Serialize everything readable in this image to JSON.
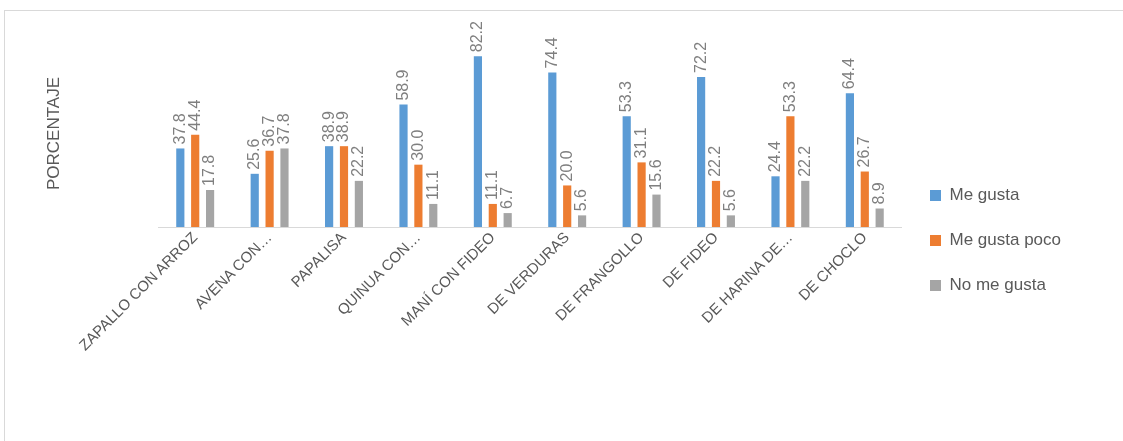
{
  "chart_data": {
    "type": "bar",
    "ylabel": "PORCENTAJE",
    "categories": [
      "ZAPALLO CON ARROZ",
      "AVENA CON…",
      "PAPALISA",
      "QUINUA CON…",
      "MANÍ CON FIDEO",
      "DE VERDURAS",
      "DE FRANGOLLO",
      "DE FIDEO",
      "DE HARINA DE…",
      "DE CHOCLO"
    ],
    "series": [
      {
        "name": "Me gusta",
        "color": "#5b9bd5",
        "values": [
          37.8,
          25.6,
          38.9,
          58.9,
          82.2,
          74.4,
          53.3,
          72.2,
          24.4,
          64.4
        ],
        "value_labels": [
          "37.8",
          "25.6",
          "38.9",
          "58.9",
          "82.2",
          "74.4",
          "53.3",
          "72.2",
          "24.4",
          "64.4"
        ]
      },
      {
        "name": "Me gusta poco",
        "color": "#ed7d31",
        "values": [
          44.4,
          36.7,
          38.9,
          30.0,
          11.1,
          20.0,
          31.1,
          22.2,
          53.3,
          26.7
        ],
        "value_labels": [
          "44.4",
          "36.7",
          "38.9",
          "30.0",
          "11.1",
          "20.0",
          "31.1",
          "22.2",
          "53.3",
          "26.7"
        ]
      },
      {
        "name": "No me gusta",
        "color": "#a5a5a5",
        "values": [
          17.8,
          37.8,
          22.2,
          11.1,
          6.7,
          5.6,
          15.6,
          5.6,
          22.2,
          8.9
        ],
        "value_labels": [
          "17.8",
          "37.8",
          "22.2",
          "11.1",
          "6.7",
          "5.6",
          "15.6",
          "5.6",
          "22.2",
          "8.9"
        ]
      }
    ],
    "tick_labels": "x",
    "legend": "right"
  }
}
